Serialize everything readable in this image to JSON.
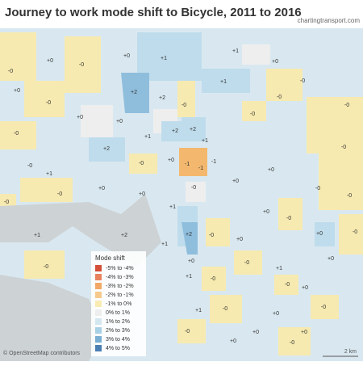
{
  "title": "Journey to work mode shift to Bicycle, 2011 to 2016",
  "source": "chartingtransport.com",
  "attribution": "© OpenStreetMap contributors",
  "scale_label": "2 km",
  "legend": {
    "title": "Mode shift",
    "items": [
      {
        "label": "-5% to -4%",
        "color": "#d4503b"
      },
      {
        "label": "-4% to -3%",
        "color": "#e8835f"
      },
      {
        "label": "-3% to -2%",
        "color": "#f2a866"
      },
      {
        "label": "-2% to -1%",
        "color": "#f6c98c"
      },
      {
        "label": "-1% to 0%",
        "color": "#f8ecb3"
      },
      {
        "label": "0% to 1%",
        "color": "#eeeeee"
      },
      {
        "label": "1% to 2%",
        "color": "#d3e7f1"
      },
      {
        "label": "2% to 3%",
        "color": "#a8d0e7"
      },
      {
        "label": "3% to 4%",
        "color": "#7aaed3"
      },
      {
        "label": "4% to 5%",
        "color": "#4b7fb2"
      }
    ]
  },
  "region_labels": [
    "+0",
    "+0",
    "+1",
    "+1",
    "+0",
    "-0",
    "-0",
    "+0",
    "+2",
    "+2",
    "+1",
    "-0",
    "-0",
    "-0",
    "+0",
    "-0",
    "-0",
    "+2",
    "+2",
    "+1",
    "+0",
    "-0",
    "+1",
    "-0",
    "+2",
    "-0",
    "+1",
    "-0",
    "+0",
    "-1",
    "-1",
    "-1",
    "+0",
    "-0",
    "-0",
    "-0",
    "+0",
    "+0",
    "-0",
    "+0",
    "-0",
    "-0",
    "+1",
    "+0",
    "-0",
    "+1",
    "+2",
    "-0",
    "+0",
    "+1",
    "+2",
    "+0",
    "-0",
    "+0",
    "-0",
    "+1",
    "-0",
    "-0",
    "+1",
    "-0",
    "+0",
    "+0",
    "-0",
    "+0",
    "+0",
    "+0",
    "+1",
    "-0",
    "-0",
    "-0",
    "+0"
  ]
}
